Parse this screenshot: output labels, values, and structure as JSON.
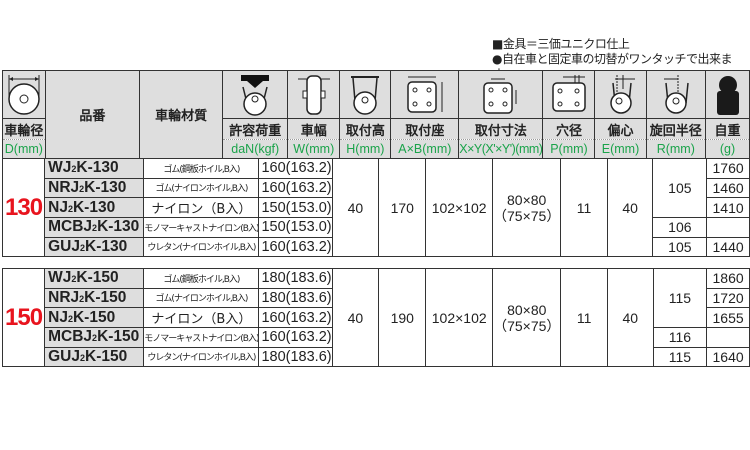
{
  "notes": [
    "■金具＝三価ユニクロ仕上",
    "●自在車と固定車の切替がワンタッチで出来ます。"
  ],
  "header": {
    "columns": [
      {
        "label": "車輪径",
        "unit": "D(mm)",
        "icon": "wheel-diameter-icon"
      },
      {
        "label": "品番",
        "unit": ""
      },
      {
        "label": "車輪材質",
        "unit": ""
      },
      {
        "label": "許容荷重",
        "unit": "daN(kgf)",
        "icon": "load-arrow-caster-icon"
      },
      {
        "label": "車幅",
        "unit": "W(mm)",
        "icon": "wheel-width-icon"
      },
      {
        "label": "取付高",
        "unit": "H(mm)",
        "icon": "mounting-height-icon"
      },
      {
        "label": "取付座",
        "unit": "A×B(mm)",
        "icon": "plate-size-icon"
      },
      {
        "label": "取付寸法",
        "unit": "X×Y(X'×Y')(mm)",
        "icon": "bolt-spacing-icon"
      },
      {
        "label": "穴径",
        "unit": "P(mm)",
        "icon": "hole-diameter-icon"
      },
      {
        "label": "偏心",
        "unit": "E(mm)",
        "icon": "offset-icon"
      },
      {
        "label": "旋回半径",
        "unit": "R(mm)",
        "icon": "swivel-radius-icon"
      },
      {
        "label": "自重",
        "unit": "(g)",
        "icon": "weight-icon"
      }
    ]
  },
  "sections": [
    {
      "size": "130",
      "width": "40",
      "height": "170",
      "plate": "102×102",
      "bolt": "80×80",
      "bolt_alt": "（75×75）",
      "hole": "11",
      "offset": "40",
      "rows": [
        {
          "model": "WJ",
          "sub": "2",
          "suffix": "K-130",
          "material": "ゴム(鋼板ホイル,B入)",
          "load": "160(163.2)",
          "radius": "105",
          "weight": "1760"
        },
        {
          "model": "NRJ",
          "sub": "2",
          "suffix": "K-130",
          "material": "ゴム(ナイロンホイル,B入)",
          "load": "160(163.2)",
          "radius": "",
          "weight": "1460"
        },
        {
          "model": "NJ",
          "sub": "2",
          "suffix": "K-130",
          "material": "ナイロン（B入）",
          "load": "150(153.0)",
          "radius": "",
          "weight": "1410"
        },
        {
          "model": "MCBJ",
          "sub": "2",
          "suffix": "K-130",
          "material": "モノマーキャストナイロン(B入)",
          "load": "150(153.0)",
          "radius": "106",
          "weight": ""
        },
        {
          "model": "GUJ",
          "sub": "2",
          "suffix": "K-130",
          "material": "ウレタン(ナイロンホイル,B入)",
          "load": "160(163.2)",
          "radius": "105",
          "weight": "1440"
        }
      ]
    },
    {
      "size": "150",
      "width": "40",
      "height": "190",
      "plate": "102×102",
      "bolt": "80×80",
      "bolt_alt": "（75×75）",
      "hole": "11",
      "offset": "40",
      "rows": [
        {
          "model": "WJ",
          "sub": "2",
          "suffix": "K-150",
          "material": "ゴム(鋼板ホイル,B入)",
          "load": "180(183.6)",
          "radius": "115",
          "weight": "1860"
        },
        {
          "model": "NRJ",
          "sub": "2",
          "suffix": "K-150",
          "material": "ゴム(ナイロンホイル,B入)",
          "load": "180(183.6)",
          "radius": "",
          "weight": "1720"
        },
        {
          "model": "NJ",
          "sub": "2",
          "suffix": "K-150",
          "material": "ナイロン（B入）",
          "load": "160(163.2)",
          "radius": "",
          "weight": "1655"
        },
        {
          "model": "MCBJ",
          "sub": "2",
          "suffix": "K-150",
          "material": "モノマーキャストナイロン(B入)",
          "load": "160(163.2)",
          "radius": "116",
          "weight": ""
        },
        {
          "model": "GUJ",
          "sub": "2",
          "suffix": "K-150",
          "material": "ウレタン(ナイロンホイル,B入)",
          "load": "180(183.6)",
          "radius": "115",
          "weight": "1640"
        }
      ]
    }
  ]
}
